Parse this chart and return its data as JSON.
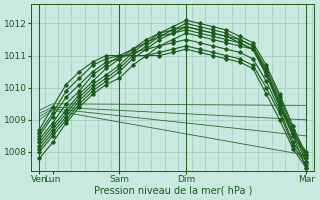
{
  "bg_color": "#c8e8e0",
  "plot_bg_color": "#c8e8e0",
  "grid_color": "#9abfb8",
  "line_color": "#1a5c1a",
  "xlabel": "Pression niveau de la mer( hPa )",
  "yticks": [
    1008,
    1009,
    1010,
    1011,
    1012
  ],
  "ylim": [
    1007.4,
    1012.6
  ],
  "xtick_labels": [
    "Ven",
    "Lun",
    "Sam",
    "Dim",
    "Mar"
  ],
  "xtick_positions": [
    0,
    0.5,
    3,
    5.5,
    10
  ],
  "xlim": [
    -0.3,
    10.3
  ],
  "vlines": [
    0,
    3,
    5.5,
    10
  ],
  "marked_series": [
    {
      "x": [
        0,
        0.5,
        1.0,
        1.5,
        2.0,
        2.5,
        3.0,
        3.5,
        4.0,
        4.5,
        5.0,
        5.5,
        6.0,
        6.5,
        7.0,
        7.5,
        8.0,
        8.5,
        9.0,
        9.5,
        10.0
      ],
      "y": [
        1007.8,
        1008.3,
        1008.9,
        1009.4,
        1009.8,
        1010.1,
        1010.3,
        1010.7,
        1011.0,
        1011.3,
        1011.5,
        1011.7,
        1011.6,
        1011.5,
        1011.4,
        1011.3,
        1011.2,
        1010.4,
        1009.5,
        1008.5,
        1007.5
      ]
    },
    {
      "x": [
        0,
        0.5,
        1.0,
        1.5,
        2.0,
        2.5,
        3.0,
        3.5,
        4.0,
        4.5,
        5.0,
        5.5,
        6.0,
        6.5,
        7.0,
        7.5,
        8.0,
        8.5,
        9.0,
        9.5,
        10.0
      ],
      "y": [
        1008.0,
        1008.5,
        1009.0,
        1009.5,
        1009.9,
        1010.2,
        1010.5,
        1010.9,
        1011.2,
        1011.5,
        1011.7,
        1011.9,
        1011.8,
        1011.7,
        1011.6,
        1011.4,
        1011.2,
        1010.5,
        1009.6,
        1008.6,
        1007.7
      ]
    },
    {
      "x": [
        0,
        0.5,
        1.0,
        1.5,
        2.0,
        2.5,
        3.0,
        3.5,
        4.0,
        4.5,
        5.0,
        5.5,
        6.0,
        6.5,
        7.0,
        7.5,
        8.0,
        8.5,
        9.0,
        9.5,
        10.0
      ],
      "y": [
        1008.1,
        1008.6,
        1009.1,
        1009.6,
        1010.0,
        1010.3,
        1010.6,
        1011.0,
        1011.3,
        1011.6,
        1011.8,
        1012.0,
        1011.9,
        1011.8,
        1011.7,
        1011.5,
        1011.3,
        1010.6,
        1009.7,
        1008.7,
        1007.8
      ]
    },
    {
      "x": [
        0,
        0.5,
        1.0,
        1.5,
        2.0,
        2.5,
        3.0,
        3.5,
        4.0,
        4.5,
        5.0,
        5.5,
        6.0,
        6.5,
        7.0,
        7.5,
        8.0,
        8.5,
        9.0,
        9.5,
        10.0
      ],
      "y": [
        1008.2,
        1008.7,
        1009.2,
        1009.7,
        1010.1,
        1010.4,
        1010.7,
        1011.1,
        1011.4,
        1011.7,
        1011.9,
        1012.1,
        1012.0,
        1011.9,
        1011.8,
        1011.6,
        1011.4,
        1010.7,
        1009.8,
        1008.8,
        1007.9
      ]
    },
    {
      "x": [
        0,
        0.5,
        1.0,
        1.5,
        2.0,
        2.5,
        3.0,
        3.5,
        4.0,
        4.5,
        5.0,
        5.5,
        6.0,
        6.5,
        7.0,
        7.5,
        8.0,
        8.5,
        9.0,
        9.5,
        10.0
      ],
      "y": [
        1008.3,
        1008.8,
        1009.3,
        1009.8,
        1010.2,
        1010.6,
        1010.9,
        1011.2,
        1011.5,
        1011.7,
        1011.8,
        1011.9,
        1011.8,
        1011.7,
        1011.6,
        1011.5,
        1011.3,
        1010.5,
        1009.5,
        1008.6,
        1008.0
      ]
    },
    {
      "x": [
        0,
        0.5,
        1.0,
        1.5,
        2.0,
        2.5,
        3.0,
        3.5,
        4.0,
        4.5,
        5.0,
        5.5,
        6.0,
        6.5,
        7.0,
        7.5,
        8.0,
        8.5,
        9.0,
        9.5,
        10.0
      ],
      "y": [
        1008.4,
        1008.9,
        1009.5,
        1009.9,
        1010.4,
        1010.7,
        1011.0,
        1011.2,
        1011.4,
        1011.6,
        1011.7,
        1011.8,
        1011.7,
        1011.6,
        1011.5,
        1011.4,
        1011.2,
        1010.4,
        1009.4,
        1008.5,
        1007.9
      ]
    },
    {
      "x": [
        0,
        0.5,
        1.0,
        1.5,
        2.0,
        2.5,
        3.0,
        3.5,
        4.0,
        4.5,
        5.0,
        5.5,
        6.0,
        6.5,
        7.0,
        7.5,
        8.0,
        8.5,
        9.0,
        9.5,
        10.0
      ],
      "y": [
        1008.5,
        1009.1,
        1009.7,
        1010.1,
        1010.5,
        1010.8,
        1010.9,
        1011.1,
        1011.2,
        1011.3,
        1011.4,
        1011.5,
        1011.4,
        1011.3,
        1011.2,
        1011.1,
        1010.9,
        1010.2,
        1009.3,
        1008.3,
        1007.7
      ]
    },
    {
      "x": [
        0,
        0.5,
        1.0,
        1.5,
        2.0,
        2.5,
        3.0,
        3.5,
        4.0,
        4.5,
        5.0,
        5.5,
        6.0,
        6.5,
        7.0,
        7.5,
        8.0,
        8.5,
        9.0,
        9.5,
        10.0
      ],
      "y": [
        1008.6,
        1009.2,
        1009.9,
        1010.3,
        1010.7,
        1010.9,
        1011.0,
        1011.0,
        1011.0,
        1011.1,
        1011.2,
        1011.3,
        1011.2,
        1011.1,
        1011.0,
        1010.9,
        1010.7,
        1010.0,
        1009.2,
        1008.2,
        1007.6
      ]
    },
    {
      "x": [
        0,
        0.5,
        1.0,
        1.5,
        2.0,
        2.5,
        3.0,
        3.5,
        4.0,
        4.5,
        5.0,
        5.5,
        6.0,
        6.5,
        7.0,
        7.5,
        8.0,
        8.5,
        9.0,
        9.5,
        10.0
      ],
      "y": [
        1008.7,
        1009.4,
        1010.1,
        1010.5,
        1010.8,
        1011.0,
        1011.0,
        1011.0,
        1011.0,
        1011.0,
        1011.1,
        1011.2,
        1011.1,
        1011.0,
        1010.9,
        1010.8,
        1010.6,
        1009.8,
        1009.0,
        1008.1,
        1007.5
      ]
    }
  ],
  "flat_series": [
    {
      "x": [
        0,
        0.5,
        10.0
      ],
      "y": [
        1009.3,
        1009.5,
        1009.45
      ]
    },
    {
      "x": [
        0,
        0.5,
        10.0
      ],
      "y": [
        1009.2,
        1009.4,
        1009.0
      ]
    },
    {
      "x": [
        0,
        0.5,
        10.0
      ],
      "y": [
        1009.1,
        1009.35,
        1008.5
      ]
    },
    {
      "x": [
        0,
        0.5,
        10.0
      ],
      "y": [
        1009.0,
        1009.3,
        1007.9
      ]
    }
  ]
}
